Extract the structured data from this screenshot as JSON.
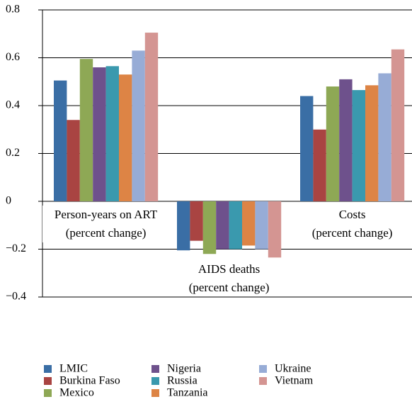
{
  "chart_data": {
    "type": "bar",
    "categories": [
      "Person-years on ART\n(percent change)",
      "AIDS deaths\n(percent change)",
      "Costs\n(percent change)"
    ],
    "series": [
      {
        "name": "LMIC",
        "color": "#3a6ea5",
        "values": [
          0.505,
          -0.205,
          0.44
        ]
      },
      {
        "name": "Burkina Faso",
        "color": "#a94442",
        "values": [
          0.34,
          -0.165,
          0.3
        ]
      },
      {
        "name": "Mexico",
        "color": "#8ea855",
        "values": [
          0.595,
          -0.22,
          0.48
        ]
      },
      {
        "name": "Nigeria",
        "color": "#6e518c",
        "values": [
          0.56,
          -0.2,
          0.51
        ]
      },
      {
        "name": "Russia",
        "color": "#3a99ae",
        "values": [
          0.565,
          -0.2,
          0.465
        ]
      },
      {
        "name": "Tanzania",
        "color": "#dd8445",
        "values": [
          0.53,
          -0.185,
          0.485
        ]
      },
      {
        "name": "Ukraine",
        "color": "#97acd6",
        "values": [
          0.63,
          -0.2,
          0.535
        ]
      },
      {
        "name": "Vietnam",
        "color": "#d49592",
        "values": [
          0.705,
          -0.235,
          0.635
        ]
      }
    ],
    "ylim": [
      -0.4,
      0.8
    ],
    "yticks": [
      {
        "value": -0.4,
        "label": "−0.4"
      },
      {
        "value": -0.2,
        "label": "−0.2"
      },
      0,
      0.2,
      0.4,
      0.6,
      0.8
    ],
    "grid": true
  }
}
